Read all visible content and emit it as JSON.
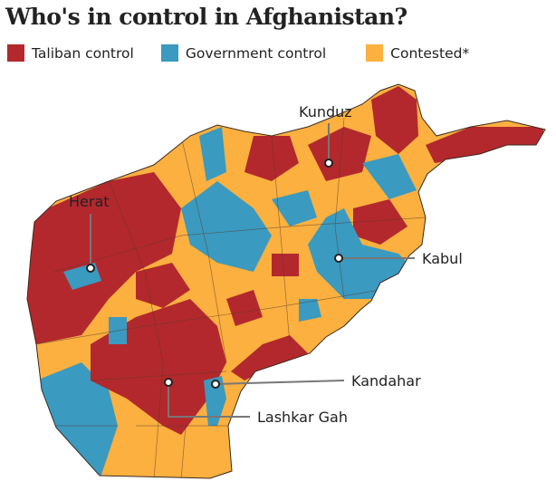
{
  "title": "Who's in control in Afghanistan?",
  "legend": [
    {
      "label": "Taliban control",
      "color": "#b3282d"
    },
    {
      "label": "Government control",
      "color": "#3a9ac0"
    },
    {
      "label": "Contested*",
      "color": "#fbb03f"
    }
  ],
  "cities": {
    "kunduz": "Kunduz",
    "herat": "Herat",
    "kabul": "Kabul",
    "kandahar": "Kandahar",
    "lashkar_gah": "Lashkar Gah"
  }
}
